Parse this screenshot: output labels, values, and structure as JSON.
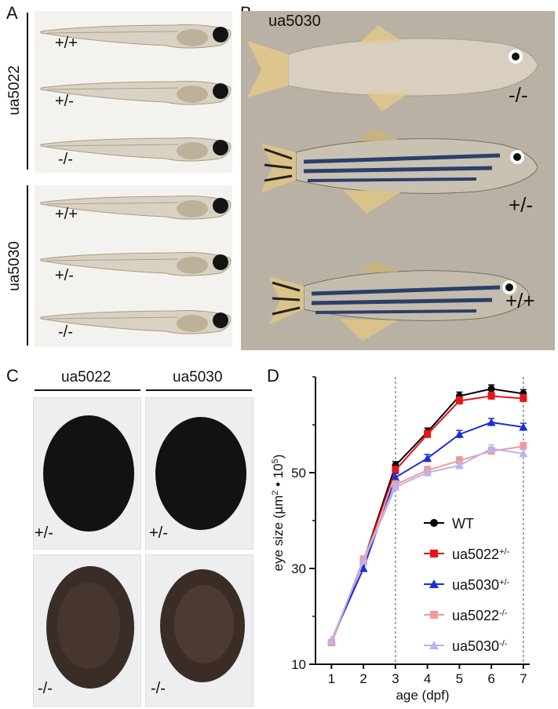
{
  "panels": {
    "a": {
      "letter": "A",
      "strain1": "ua5022",
      "strain2": "ua5030",
      "larvae": [
        "+/+",
        "+/-",
        "-/-",
        "+/+",
        "+/-",
        "-/-"
      ]
    },
    "b": {
      "letter": "B",
      "strain": "ua5030",
      "fish": [
        "-/-",
        "+/-",
        "+/+"
      ]
    },
    "c": {
      "letter": "C",
      "col1": "ua5022",
      "col2": "ua5030",
      "tiles": [
        "+/-",
        "+/-",
        "-/-",
        "-/-"
      ]
    },
    "d": {
      "letter": "D"
    }
  },
  "colors": {
    "WT": "#000000",
    "ua5022_het": "#e8141b",
    "ua5030_het": "#1a2ed8",
    "ua5022_hom": "#f29a9a",
    "ua5030_hom": "#b9b5ec"
  },
  "chart_data": {
    "type": "line",
    "xlabel": "age (dpf)",
    "ylabel_main": "eye size (µm",
    "ylabel_sup": "2",
    "ylabel_mid": " • 10",
    "ylabel_sup2": "5",
    "ylabel_end": ")",
    "x": [
      1,
      2,
      3,
      4,
      5,
      6,
      7
    ],
    "yticks": [
      10,
      30,
      50
    ],
    "ylim": [
      10,
      70
    ],
    "xlim": [
      0.5,
      7.2
    ],
    "reference_lines_x": [
      3,
      7
    ],
    "series": [
      {
        "name": "WT",
        "sup": "",
        "marker": "circle",
        "values": [
          14.5,
          31.5,
          51.5,
          58.5,
          66,
          67.5,
          66.5
        ]
      },
      {
        "name": "ua5022",
        "sup": "+/-",
        "marker": "square",
        "values": [
          14.5,
          31.5,
          50.5,
          58,
          65,
          66,
          65.5
        ]
      },
      {
        "name": "ua5030",
        "sup": "+/-",
        "marker": "triangle",
        "values": [
          15,
          30,
          49,
          53,
          58,
          60.5,
          59.5
        ]
      },
      {
        "name": "ua5022",
        "sup": "-/-",
        "marker": "square",
        "values": [
          14.5,
          32,
          47.5,
          50.5,
          52.5,
          54.5,
          55.5
        ]
      },
      {
        "name": "ua5030",
        "sup": "-/-",
        "marker": "triangle",
        "values": [
          15,
          31.5,
          47,
          50,
          51.5,
          55,
          54
        ]
      }
    ]
  }
}
